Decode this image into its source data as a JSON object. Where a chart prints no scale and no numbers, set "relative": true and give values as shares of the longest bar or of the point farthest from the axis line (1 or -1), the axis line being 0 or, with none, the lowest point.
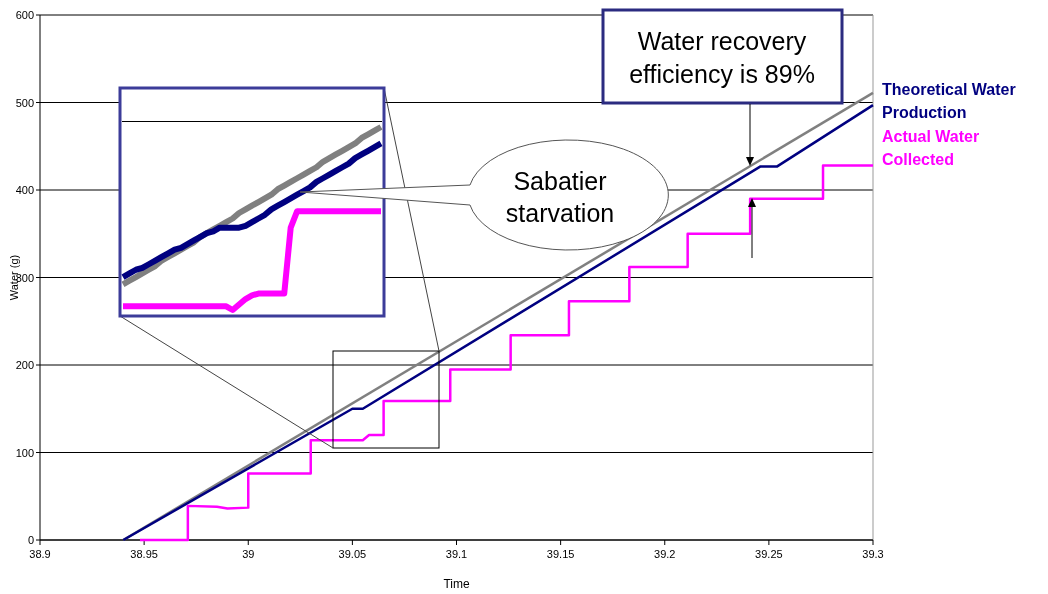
{
  "chart_data": [
    {
      "type": "line",
      "xlabel": "Time",
      "ylabel": "Water (g)",
      "xlim": [
        38.9,
        39.3
      ],
      "ylim": [
        0,
        600
      ],
      "xticks": [
        38.9,
        38.95,
        39,
        39.05,
        39.1,
        39.15,
        39.2,
        39.25,
        39.3
      ],
      "yticks": [
        0,
        100,
        200,
        300,
        400,
        500,
        600
      ],
      "grid": "y",
      "line_style": "solid",
      "series": [
        {
          "color": "#808080",
          "x": [
            38.94,
            39.3
          ],
          "values": [
            0,
            511
          ]
        },
        {
          "name": "Theoretical Water Production",
          "color": "#000080",
          "x": [
            38.94,
            39.05,
            39.055,
            39.246,
            39.254,
            39.3
          ],
          "values": [
            0,
            150,
            150,
            427,
            427,
            497
          ]
        },
        {
          "name": "Actual Water Collected",
          "color": "#ff00ff",
          "x": [
            38.948,
            38.971,
            38.971,
            38.985,
            38.99,
            39.0,
            39.0,
            39.03,
            39.03,
            39.055,
            39.058,
            39.065,
            39.065,
            39.097,
            39.097,
            39.126,
            39.126,
            39.154,
            39.154,
            39.183,
            39.183,
            39.211,
            39.211,
            39.241,
            39.241,
            39.276,
            39.276,
            39.3
          ],
          "values": [
            0,
            0,
            39,
            38,
            36,
            37,
            76,
            76,
            114,
            114,
            120,
            120,
            159,
            159,
            195,
            195,
            234,
            234,
            273,
            273,
            312,
            312,
            350,
            350,
            390,
            390,
            428,
            428
          ]
        }
      ],
      "annotations": [
        "Water recovery efficiency is 89%",
        "Sabatier starvation"
      ]
    },
    {
      "type": "line",
      "relative": true,
      "line_style": "solid",
      "categories": [
        null,
        null,
        null,
        null,
        null,
        null,
        null,
        null,
        null,
        null,
        null,
        null,
        null,
        null,
        null,
        null,
        null,
        null,
        null,
        null,
        null,
        null,
        null,
        null,
        null,
        null,
        null,
        null,
        null,
        null,
        null,
        null,
        null,
        null,
        null,
        null,
        null,
        null,
        null,
        null,
        null
      ],
      "ref_lines": [
        {
          "axis": "y",
          "value": 1.03,
          "color": "#000000"
        }
      ],
      "series": [
        {
          "color": "#808080",
          "values": [
            0.14,
            0.16,
            0.18,
            0.2,
            0.22,
            0.24,
            0.27,
            0.29,
            0.31,
            0.33,
            0.35,
            0.37,
            0.4,
            0.42,
            0.44,
            0.46,
            0.48,
            0.5,
            0.53,
            0.55,
            0.57,
            0.59,
            0.61,
            0.63,
            0.66,
            0.68,
            0.7,
            0.72,
            0.74,
            0.76,
            0.78,
            0.81,
            0.83,
            0.85,
            0.87,
            0.89,
            0.91,
            0.94,
            0.96,
            0.98,
            1
          ]
        },
        {
          "color": "#000080",
          "values": [
            0.18,
            0.2,
            0.22,
            0.23,
            0.25,
            0.27,
            0.29,
            0.31,
            0.33,
            0.34,
            0.36,
            0.38,
            0.4,
            0.42,
            0.43,
            0.45,
            0.45,
            0.45,
            0.45,
            0.46,
            0.48,
            0.5,
            0.52,
            0.55,
            0.57,
            0.59,
            0.61,
            0.63,
            0.65,
            0.67,
            0.7,
            0.72,
            0.74,
            0.76,
            0.78,
            0.8,
            0.83,
            0.85,
            0.87,
            0.89,
            0.91
          ]
        },
        {
          "color": "#ff00ff",
          "values": [
            0.02,
            0.02,
            0.02,
            0.02,
            0.02,
            0.02,
            0.02,
            0.02,
            0.02,
            0.02,
            0.02,
            0.02,
            0.02,
            0.02,
            0.02,
            0.02,
            0.02,
            0,
            0.03,
            0.06,
            0.08,
            0.09,
            0.09,
            0.09,
            0.09,
            0.09,
            0.45,
            0.54,
            0.54,
            0.54,
            0.54,
            0.54,
            0.54,
            0.54,
            0.54,
            0.54,
            0.54,
            0.54,
            0.54,
            0.54,
            0.54
          ]
        }
      ]
    }
  ]
}
